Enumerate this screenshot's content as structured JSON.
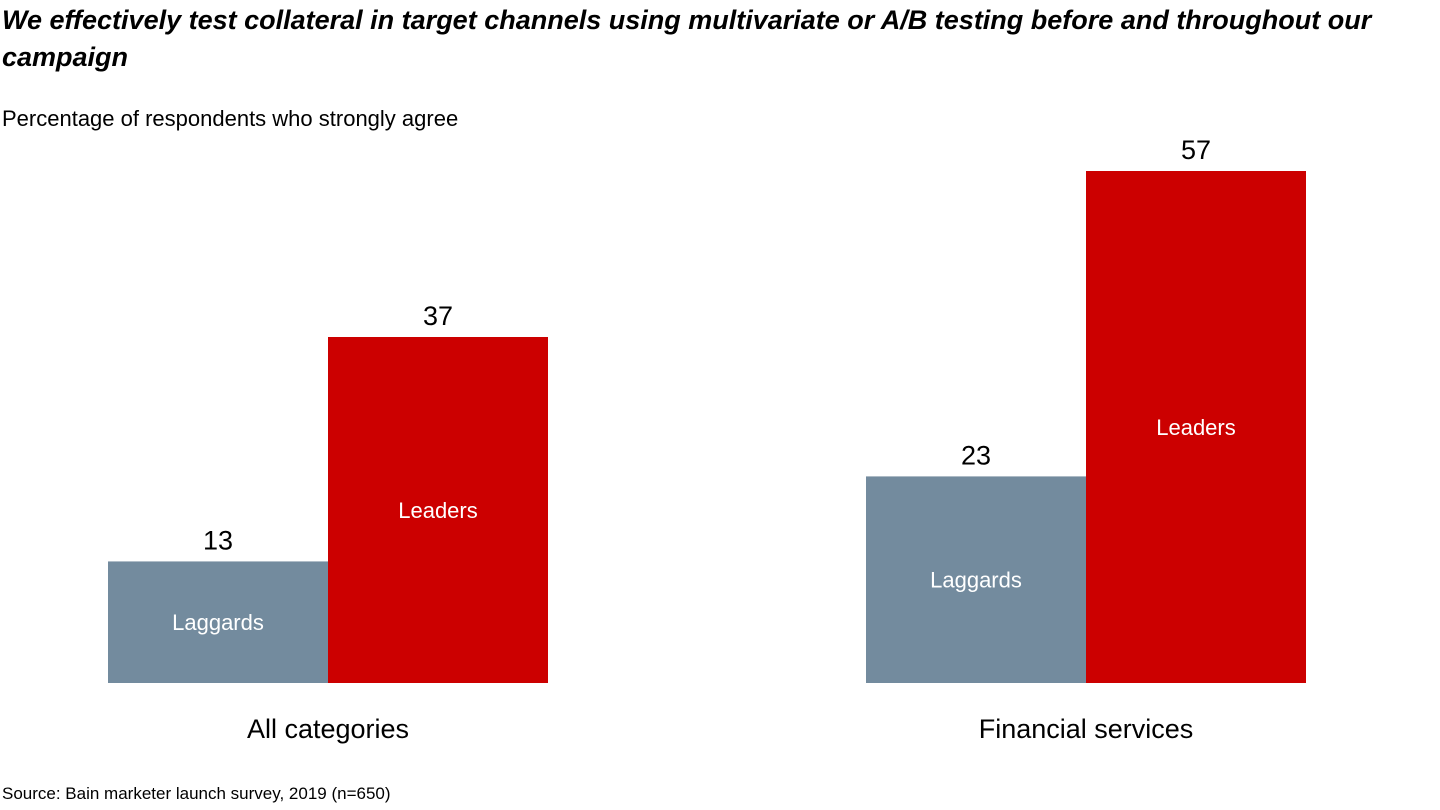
{
  "chart_data": {
    "type": "bar",
    "title": "We effectively test collateral in target channels using multivariate or A/B testing before and throughout our campaign",
    "subtitle": "Percentage of respondents who strongly agree",
    "source": "Source: Bain marketer launch survey, 2019 (n=650)",
    "categories": [
      "All categories",
      "Financial services"
    ],
    "series": [
      {
        "name": "Laggards",
        "values": [
          13,
          23
        ],
        "color": "#738b9e"
      },
      {
        "name": "Leaders",
        "values": [
          37,
          57
        ],
        "color": "#cc0000"
      }
    ],
    "xlabel": "",
    "ylabel": "",
    "grid": false,
    "legend": "in-bar labels"
  }
}
